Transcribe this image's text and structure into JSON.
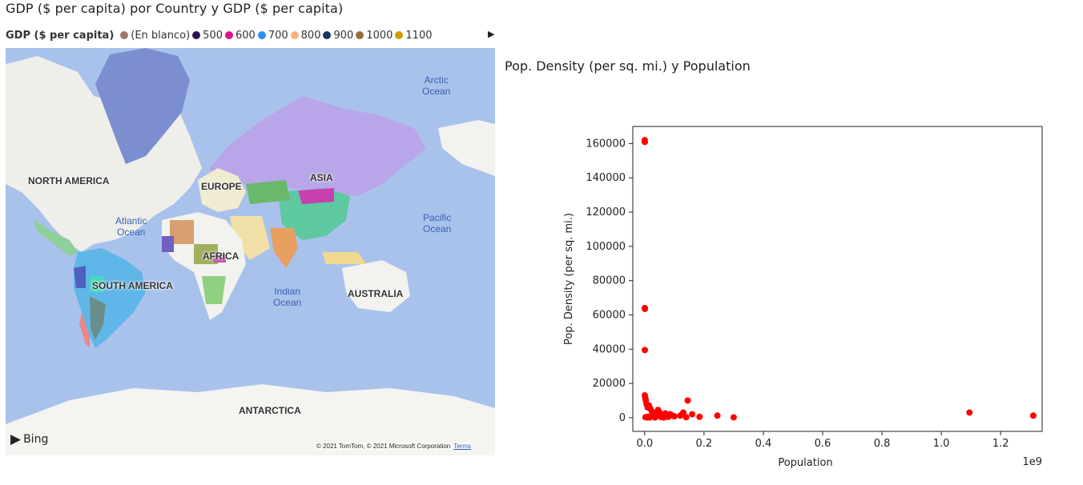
{
  "map_visual": {
    "title": "GDP ($ per capita) por Country y GDP ($ per capita)",
    "legend": {
      "title": "GDP ($ per capita)",
      "items": [
        {
          "label": "(En blanco)",
          "color": "#a0786a"
        },
        {
          "label": "500",
          "color": "#2e1055"
        },
        {
          "label": "600",
          "color": "#e0108c"
        },
        {
          "label": "700",
          "color": "#2e8ff0"
        },
        {
          "label": "800",
          "color": "#f7b27a"
        },
        {
          "label": "900",
          "color": "#14375e"
        },
        {
          "label": "1000",
          "color": "#9b6b3a"
        },
        {
          "label": "1100",
          "color": "#c8a000"
        }
      ],
      "more_icon": "triangle-right-icon"
    },
    "continent_labels": {
      "north_america": "NORTH AMERICA",
      "europe": "EUROPE",
      "asia": "ASIA",
      "africa": "AFRICA",
      "south_america": "SOUTH AMERICA",
      "australia": "AUSTRALIA",
      "antarctica": "ANTARCTICA"
    },
    "ocean_labels": {
      "arctic": "Arctic\nOcean",
      "atlantic": "Atlantic\nOcean",
      "pacific": "Pacific\nOcean",
      "indian": "Indian\nOcean"
    },
    "provider": "Bing",
    "copyright": "© 2021 TomTom, © 2021 Microsoft Corporation",
    "terms": "Terms",
    "colors": {
      "ocean": "#a9c2ec",
      "land": "#f2f2ee",
      "eurasia": "#b8a6e8",
      "greenland": "#7b8fd0"
    }
  },
  "scatter_visual": {
    "title": "Pop. Density (per sq. mi.) y Population"
  },
  "chart_data": {
    "type": "scatter",
    "xlabel": "Population",
    "ylabel": "Pop. Density (per sq. mi.)",
    "x_multiplier": "1e9",
    "x_ticks": [
      "0.0",
      "0.2",
      "0.4",
      "0.6",
      "0.8",
      "1.0",
      "1.2"
    ],
    "y_ticks": [
      "0",
      "20000",
      "40000",
      "60000",
      "80000",
      "100000",
      "120000",
      "140000",
      "160000"
    ],
    "xlim": [
      -0.04,
      1.34
    ],
    "ylim": [
      -8000,
      170000
    ],
    "color": "#ff0000",
    "points": [
      {
        "x": 0.0003,
        "y": 162000
      },
      {
        "x": 0.0005,
        "y": 161000
      },
      {
        "x": 0.0004,
        "y": 64000
      },
      {
        "x": 0.0008,
        "y": 63500
      },
      {
        "x": 0.0005,
        "y": 39500
      },
      {
        "x": 0.0004,
        "y": 13000
      },
      {
        "x": 0.002,
        "y": 11500
      },
      {
        "x": 0.004,
        "y": 10000
      },
      {
        "x": 0.006,
        "y": 8000
      },
      {
        "x": 0.01,
        "y": 6000
      },
      {
        "x": 0.015,
        "y": 7000
      },
      {
        "x": 0.02,
        "y": 5000
      },
      {
        "x": 0.025,
        "y": 3500
      },
      {
        "x": 0.03,
        "y": 2500
      },
      {
        "x": 0.04,
        "y": 1500
      },
      {
        "x": 0.045,
        "y": 4500
      },
      {
        "x": 0.05,
        "y": 3000
      },
      {
        "x": 0.06,
        "y": 1000
      },
      {
        "x": 0.07,
        "y": 2500
      },
      {
        "x": 0.08,
        "y": 500
      },
      {
        "x": 0.085,
        "y": 2000
      },
      {
        "x": 0.09,
        "y": 1500
      },
      {
        "x": 0.1,
        "y": 800
      },
      {
        "x": 0.12,
        "y": 1200
      },
      {
        "x": 0.13,
        "y": 3000
      },
      {
        "x": 0.14,
        "y": 300
      },
      {
        "x": 0.145,
        "y": 10000
      },
      {
        "x": 0.16,
        "y": 2000
      },
      {
        "x": 0.185,
        "y": 500
      },
      {
        "x": 0.245,
        "y": 1200
      },
      {
        "x": 0.3,
        "y": 200
      },
      {
        "x": 1.095,
        "y": 3000
      },
      {
        "x": 1.31,
        "y": 1200
      },
      {
        "x": 0.003,
        "y": 300
      },
      {
        "x": 0.008,
        "y": 100
      },
      {
        "x": 0.012,
        "y": 600
      },
      {
        "x": 0.018,
        "y": 200
      },
      {
        "x": 0.028,
        "y": 900
      },
      {
        "x": 0.035,
        "y": 100
      },
      {
        "x": 0.055,
        "y": 400
      },
      {
        "x": 0.065,
        "y": 100
      }
    ]
  }
}
